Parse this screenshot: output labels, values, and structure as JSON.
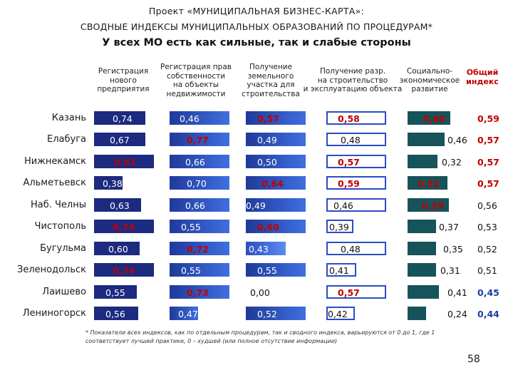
{
  "header": {
    "title_line1": "Проект «МУНИЦИПАЛЬНАЯ БИЗНЕС-КАРТА»:",
    "title_line2": "СВОДНЫЕ ИНДЕКСЫ МУНИЦИПАЛЬНЫХ ОБРАЗОВАНИЙ ПО ПРОЦЕДУРАМ*",
    "subtitle": "У всех МО есть как сильные, так и слабые стороны"
  },
  "columns": {
    "c1": [
      "Регистрация",
      "нового",
      "предприятия"
    ],
    "c2": [
      "Регистрация прав",
      "собственности",
      "на объекты",
      "недвижимости"
    ],
    "c3": [
      "Получение",
      "земельного",
      "участка для",
      "строительства"
    ],
    "c4": [
      "Получение разр.",
      "на строительство",
      "и эксплуатацию объекта"
    ],
    "c5": [
      "Социально-",
      "экономическое",
      "развитие"
    ],
    "c6": [
      "Общий",
      "индекс"
    ]
  },
  "rows": [
    {
      "name": "Казань",
      "v": [
        "0,74",
        "0,46",
        "0,57",
        "0,58",
        "0,60",
        "0,59"
      ]
    },
    {
      "name": "Елабуга",
      "v": [
        "0,67",
        "0,77",
        "0,49",
        "0,48",
        "0,46",
        "0,57"
      ]
    },
    {
      "name": "Нижнекамск",
      "v": [
        "0,81",
        "0,66",
        "0,50",
        "0,57",
        "0,32",
        "0,57"
      ]
    },
    {
      "name": "Альметьевск",
      "v": [
        "0,38",
        "0,70",
        "0,64",
        "0,59",
        "0,52",
        "0,57"
      ]
    },
    {
      "name": "Наб. Челны",
      "v": [
        "0,63",
        "0,66",
        "0,49",
        "0,46",
        "0,59",
        "0,56"
      ]
    },
    {
      "name": "Чистополь",
      "v": [
        "0,74",
        "0,55",
        "0,60",
        "0,39",
        "0,37",
        "0,53"
      ]
    },
    {
      "name": "Бугульма",
      "v": [
        "0,60",
        "0,72",
        "0,43",
        "0,48",
        "0,35",
        "0,52"
      ]
    },
    {
      "name": "Зеленодольск",
      "v": [
        "0,74",
        "0,55",
        "0,55",
        "0,41",
        "0,31",
        "0,51"
      ]
    },
    {
      "name": "Лаишево",
      "v": [
        "0,55",
        "0,73",
        "0,00",
        "0,57",
        "0,41",
        "0,45"
      ]
    },
    {
      "name": "Лениногорск",
      "v": [
        "0,56",
        "0,47",
        "0,52",
        "0,42",
        "0,24",
        "0,44"
      ]
    }
  ],
  "footnote": "* Показатели всех индексов, как по отдельным процедурам, так и сводного индекса, варьируются от 0 до 1, где 1 соответствует лучшей практике, 0 – худшей (или полное отсутствие информации)",
  "page_number": "58",
  "colors": {
    "bar_dark": "#1c2a80",
    "bar_blue": "#3f6fe0",
    "bar_light_border": "#2b4cc4",
    "bar_teal": "#17535a",
    "highlight_red": "#c00000",
    "low_blue": "#1b3fa8"
  }
}
